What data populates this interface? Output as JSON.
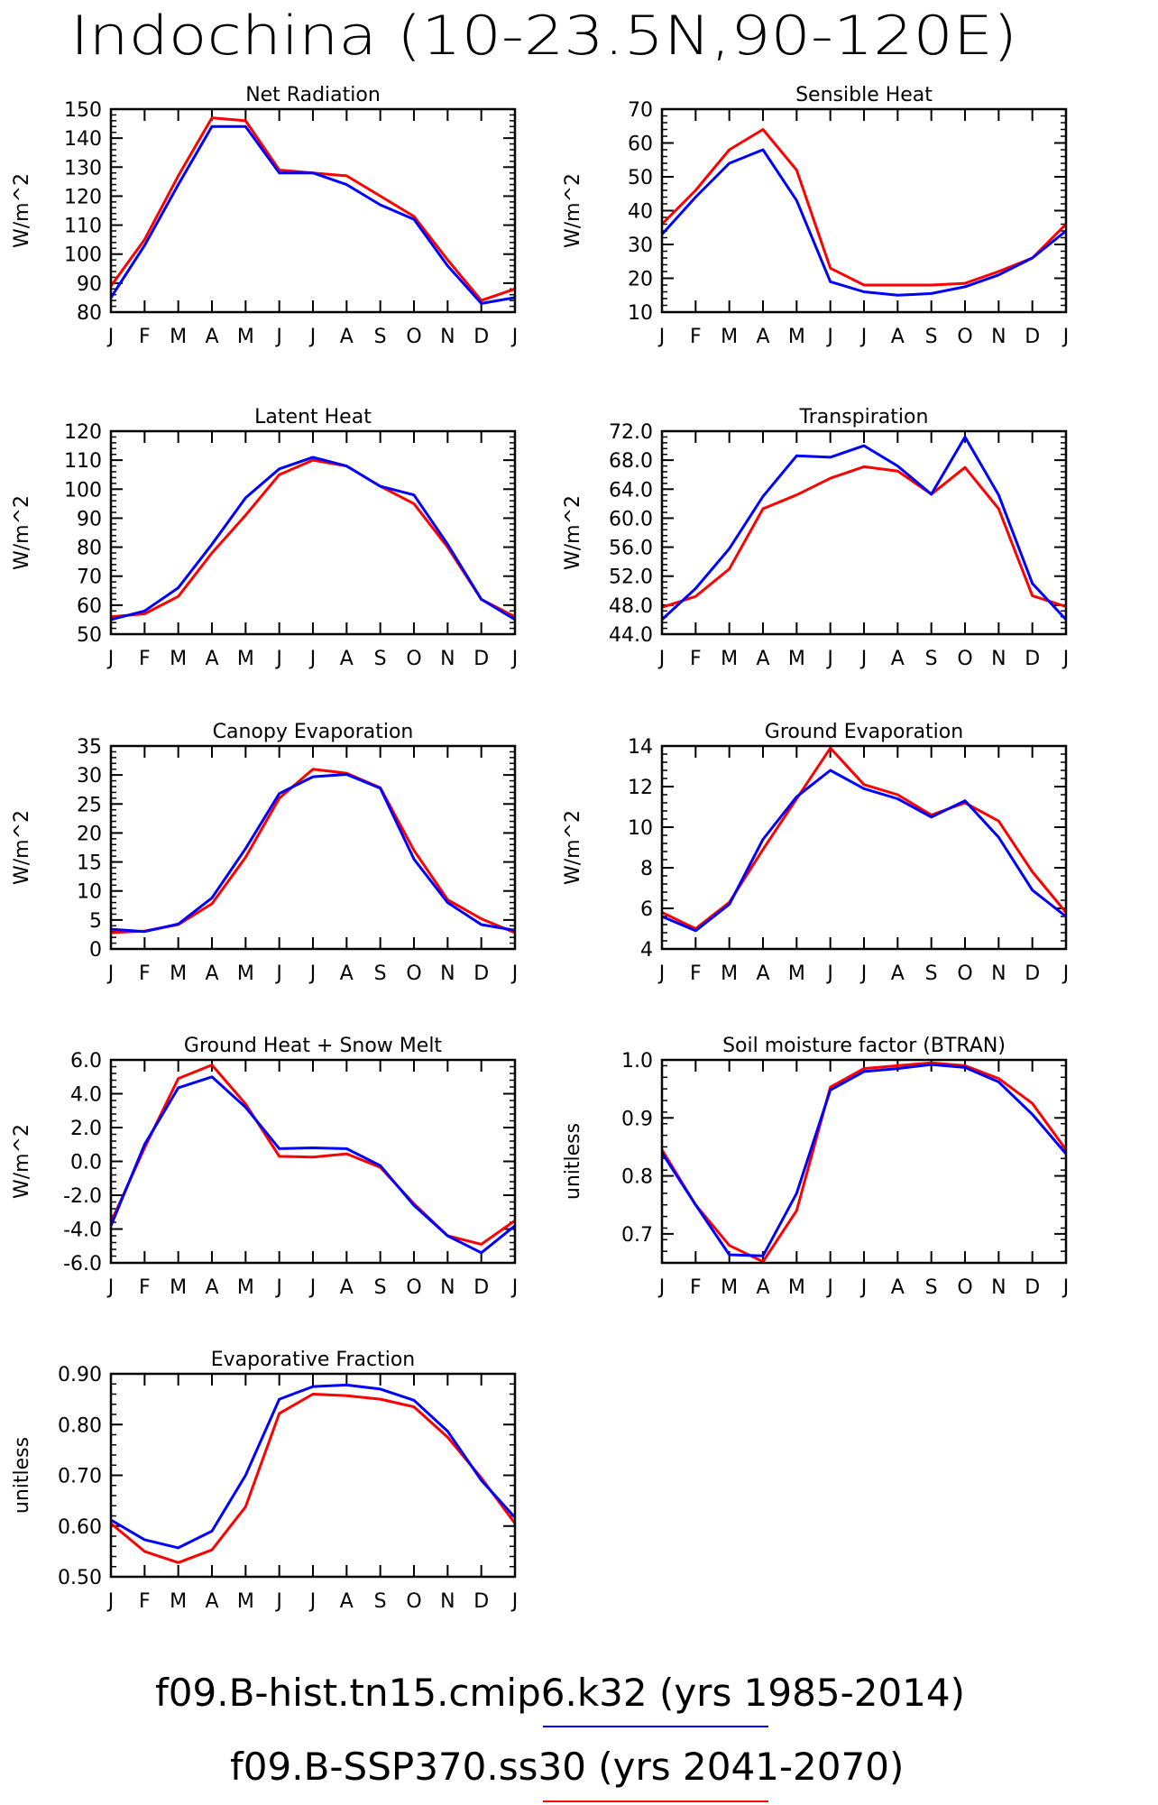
{
  "page": {
    "title": "Indochina (10-23.5N,90-120E)"
  },
  "colors": {
    "hist": "#0000ff",
    "ssp": "#ff0000"
  },
  "legend": [
    {
      "label": "f09.B-hist.tn15.cmip6.k32 (yrs 1985-2014)",
      "color": "#0000ff"
    },
    {
      "label": "f09.B-SSP370.ss30 (yrs 2041-2070)",
      "color": "#ff0000"
    }
  ],
  "months": [
    "J",
    "F",
    "M",
    "A",
    "M",
    "J",
    "J",
    "A",
    "S",
    "O",
    "N",
    "D",
    "J"
  ],
  "chart_data": [
    {
      "type": "line",
      "title": "Net Radiation",
      "ylabel": "W/m^2",
      "ylim": [
        80,
        150
      ],
      "yticks": [
        "80",
        "90",
        "100",
        "110",
        "120",
        "130",
        "140",
        "150"
      ],
      "ytick_values": [
        80,
        90,
        100,
        110,
        120,
        130,
        140,
        150
      ],
      "series": [
        {
          "values": [
            89,
            105,
            127,
            147,
            146,
            129,
            128,
            127,
            120,
            113,
            98,
            84,
            88
          ],
          "color": "#ff0000"
        },
        {
          "values": [
            85,
            103,
            124,
            144,
            144,
            128,
            128,
            124,
            117,
            112,
            96,
            83,
            85
          ],
          "color": "#0000ff"
        }
      ]
    },
    {
      "type": "line",
      "title": "Sensible Heat",
      "ylabel": "W/m^2",
      "ylim": [
        10,
        70
      ],
      "yticks": [
        "10",
        "20",
        "30",
        "40",
        "50",
        "60",
        "70"
      ],
      "ytick_values": [
        10,
        20,
        30,
        40,
        50,
        60,
        70
      ],
      "series": [
        {
          "values": [
            36,
            46,
            58,
            64,
            52,
            23,
            18,
            18,
            18,
            18.5,
            22,
            26,
            36
          ],
          "color": "#ff0000"
        },
        {
          "values": [
            33,
            44,
            54,
            58,
            43,
            19,
            16,
            15,
            15.5,
            17.5,
            21,
            26,
            34
          ],
          "color": "#0000ff"
        }
      ]
    },
    {
      "type": "line",
      "title": "Latent Heat",
      "ylabel": "W/m^2",
      "ylim": [
        50,
        120
      ],
      "yticks": [
        "50",
        "60",
        "70",
        "80",
        "90",
        "100",
        "110",
        "120"
      ],
      "ytick_values": [
        50,
        60,
        70,
        80,
        90,
        100,
        110,
        120
      ],
      "series": [
        {
          "values": [
            56,
            57,
            63,
            78,
            91,
            105,
            110,
            108,
            101,
            95,
            80,
            62,
            56
          ],
          "color": "#ff0000"
        },
        {
          "values": [
            55,
            58,
            66,
            81,
            97,
            107,
            111,
            108,
            101,
            98,
            81,
            62,
            55
          ],
          "color": "#0000ff"
        }
      ]
    },
    {
      "type": "line",
      "title": "Transpiration",
      "ylabel": "W/m^2",
      "ylim": [
        44,
        72
      ],
      "yticks": [
        "44.0",
        "48.0",
        "52.0",
        "56.0",
        "60.0",
        "64.0",
        "68.0",
        "72.0"
      ],
      "ytick_values": [
        44,
        48,
        52,
        56,
        60,
        64,
        68,
        72
      ],
      "series": [
        {
          "values": [
            47.7,
            49.2,
            53,
            61.3,
            63.2,
            65.5,
            67.1,
            66.5,
            63.3,
            67,
            61.3,
            49.3,
            47.8
          ],
          "color": "#ff0000"
        },
        {
          "values": [
            46,
            50.3,
            55.8,
            63,
            68.6,
            68.4,
            70,
            67.2,
            63.3,
            71.2,
            63.2,
            51,
            46
          ],
          "color": "#0000ff"
        }
      ]
    },
    {
      "type": "line",
      "title": "Canopy Evaporation",
      "ylabel": "W/m^2",
      "ylim": [
        0,
        35
      ],
      "yticks": [
        "0",
        "5",
        "10",
        "15",
        "20",
        "25",
        "30",
        "35"
      ],
      "ytick_values": [
        0,
        5,
        10,
        15,
        20,
        25,
        30,
        35
      ],
      "series": [
        {
          "values": [
            2.8,
            3.1,
            4.2,
            7.8,
            15.8,
            26,
            31,
            30.3,
            27.8,
            17,
            8.5,
            5.2,
            2.8
          ],
          "color": "#ff0000"
        },
        {
          "values": [
            3.4,
            3,
            4.3,
            8.8,
            17.3,
            26.8,
            29.7,
            30.1,
            27.7,
            15.5,
            8,
            4.2,
            3.2
          ],
          "color": "#0000ff"
        }
      ]
    },
    {
      "type": "line",
      "title": "Ground Evaporation",
      "ylabel": "W/m^2",
      "ylim": [
        4,
        14
      ],
      "yticks": [
        "4",
        "6",
        "8",
        "10",
        "12",
        "14"
      ],
      "ytick_values": [
        4,
        6,
        8,
        10,
        12,
        14
      ],
      "series": [
        {
          "values": [
            5.8,
            5,
            6.3,
            8.9,
            11.4,
            13.9,
            12.1,
            11.6,
            10.6,
            11.2,
            10.3,
            7.8,
            5.8
          ],
          "color": "#ff0000"
        },
        {
          "values": [
            5.6,
            4.9,
            6.2,
            9.4,
            11.5,
            12.8,
            11.9,
            11.4,
            10.5,
            11.3,
            9.5,
            6.9,
            5.6
          ],
          "color": "#0000ff"
        }
      ]
    },
    {
      "type": "line",
      "title": "Ground Heat + Snow Melt",
      "ylabel": "W/m^2",
      "ylim": [
        -6,
        6
      ],
      "yticks": [
        "-6.0",
        "-4.0",
        "-2.0",
        "0.0",
        "2.0",
        "4.0",
        "6.0"
      ],
      "ytick_values": [
        -6,
        -4,
        -2,
        0,
        2,
        4,
        6
      ],
      "series": [
        {
          "values": [
            -3.6,
            0.8,
            4.9,
            5.7,
            3.4,
            0.3,
            0.25,
            0.45,
            -0.35,
            -2.5,
            -4.4,
            -4.9,
            -3.5
          ],
          "color": "#ff0000"
        },
        {
          "values": [
            -3.8,
            1,
            4.35,
            5,
            3.2,
            0.75,
            0.8,
            0.75,
            -0.25,
            -2.6,
            -4.4,
            -5.4,
            -3.8
          ],
          "color": "#0000ff"
        }
      ]
    },
    {
      "type": "line",
      "title": "Soil moisture factor (BTRAN)",
      "ylabel": "unitless",
      "ylim": [
        0.65,
        1.0
      ],
      "yticks": [
        "0.7",
        "0.8",
        "0.9",
        "1.0"
      ],
      "ytick_values": [
        0.7,
        0.8,
        0.9,
        1.0
      ],
      "series": [
        {
          "values": [
            0.845,
            0.75,
            0.68,
            0.652,
            0.74,
            0.953,
            0.985,
            0.99,
            0.995,
            0.99,
            0.968,
            0.925,
            0.845
          ],
          "color": "#ff0000"
        },
        {
          "values": [
            0.84,
            0.75,
            0.664,
            0.662,
            0.77,
            0.948,
            0.98,
            0.985,
            0.992,
            0.987,
            0.962,
            0.906,
            0.838
          ],
          "color": "#0000ff"
        }
      ]
    },
    {
      "type": "line",
      "title": "Evaporative Fraction",
      "ylabel": "unitless",
      "ylim": [
        0.5,
        0.9
      ],
      "yticks": [
        "0.50",
        "0.60",
        "0.70",
        "0.80",
        "0.90"
      ],
      "ytick_values": [
        0.5,
        0.6,
        0.7,
        0.8,
        0.9
      ],
      "series": [
        {
          "values": [
            0.605,
            0.55,
            0.528,
            0.553,
            0.638,
            0.822,
            0.86,
            0.857,
            0.85,
            0.835,
            0.775,
            0.695,
            0.605
          ],
          "color": "#ff0000"
        },
        {
          "values": [
            0.612,
            0.573,
            0.557,
            0.59,
            0.7,
            0.85,
            0.875,
            0.878,
            0.87,
            0.848,
            0.787,
            0.69,
            0.617
          ],
          "color": "#0000ff"
        }
      ]
    }
  ]
}
